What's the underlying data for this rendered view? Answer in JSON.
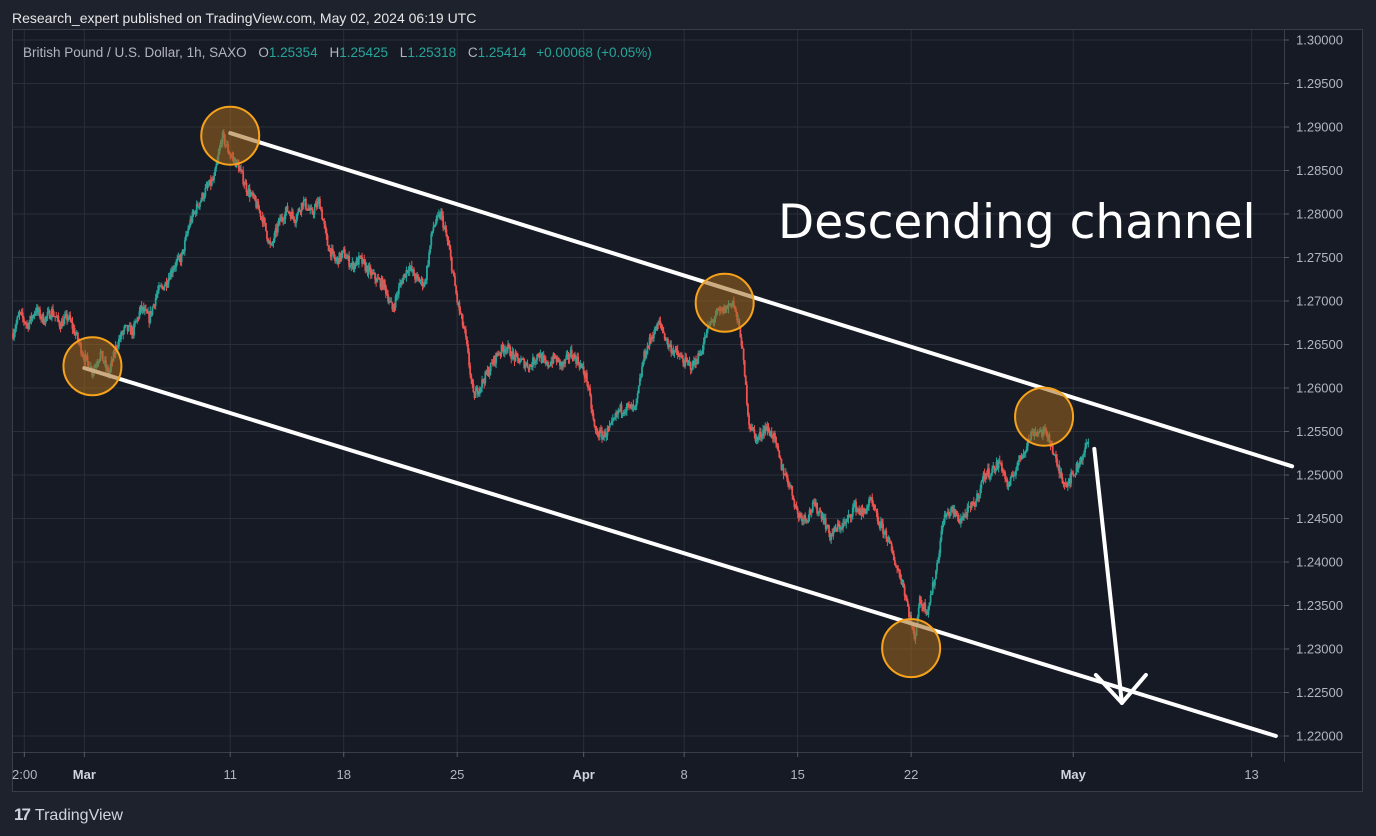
{
  "header": {
    "published_line": "Research_expert published on TradingView.com, May 02, 2024 06:19 UTC"
  },
  "legend": {
    "symbol": "British Pound / U.S. Dollar, 1h, SAXO",
    "open_key": "O",
    "open": "1.25354",
    "high_key": "H",
    "high": "1.25425",
    "low_key": "L",
    "low": "1.25318",
    "close_key": "C",
    "close": "1.25414",
    "change": "+0.00068 (+0.05%)"
  },
  "annotation": {
    "text": "Descending channel"
  },
  "footer": {
    "brand_logo": "17",
    "brand": "TradingView"
  },
  "colors": {
    "up": "#26a69a",
    "down": "#ef5350",
    "channel": "#ffffff",
    "marker_fill": "#a36a1d",
    "marker_stroke": "#f7a21b",
    "grid": "#2a2e39",
    "background": "#161a25"
  },
  "chart_data": {
    "type": "candlestick",
    "title": "British Pound / U.S. Dollar, 1h, SAXO",
    "ylabel": "",
    "xlabel": "",
    "ylim": [
      1.2175,
      1.3
    ],
    "y_ticks": [
      "1.30000",
      "1.29500",
      "1.29000",
      "1.28500",
      "1.28000",
      "1.27500",
      "1.27000",
      "1.26500",
      "1.26000",
      "1.25500",
      "1.25000",
      "1.24500",
      "1.24000",
      "1.23500",
      "1.23000",
      "1.22500",
      "1.22000"
    ],
    "x_ticks": [
      "2:00",
      "Mar",
      "11",
      "18",
      "25",
      "Apr",
      "8",
      "15",
      "22",
      "May",
      "13"
    ],
    "x_ticks_bold": [
      "Mar",
      "Apr",
      "May"
    ],
    "x_tick_days": [
      -3.7,
      0,
      9,
      16,
      23,
      30.8,
      37,
      44,
      51,
      61,
      72
    ],
    "xlim_days": [
      -4.4,
      74
    ],
    "grid": true,
    "price_path": [
      [
        -4.4,
        1.2663
      ],
      [
        -4,
        1.2685
      ],
      [
        -3.5,
        1.2672
      ],
      [
        -3,
        1.269
      ],
      [
        -2.5,
        1.2678
      ],
      [
        -2,
        1.2688
      ],
      [
        -1.5,
        1.2673
      ],
      [
        -1,
        1.2682
      ],
      [
        -0.5,
        1.266
      ],
      [
        0,
        1.2635
      ],
      [
        0.5,
        1.262
      ],
      [
        1,
        1.264
      ],
      [
        1.5,
        1.2615
      ],
      [
        2,
        1.265
      ],
      [
        2.5,
        1.2668
      ],
      [
        3,
        1.2665
      ],
      [
        3.5,
        1.2692
      ],
      [
        4,
        1.268
      ],
      [
        4.5,
        1.271
      ],
      [
        5,
        1.272
      ],
      [
        5.5,
        1.274
      ],
      [
        6,
        1.275
      ],
      [
        6.5,
        1.279
      ],
      [
        7,
        1.281
      ],
      [
        7.5,
        1.2828
      ],
      [
        8,
        1.284
      ],
      [
        8.5,
        1.289
      ],
      [
        9,
        1.2868
      ],
      [
        9.5,
        1.2855
      ],
      [
        10,
        1.283
      ],
      [
        10.5,
        1.2815
      ],
      [
        11,
        1.2795
      ],
      [
        11.5,
        1.276
      ],
      [
        12,
        1.279
      ],
      [
        12.5,
        1.2805
      ],
      [
        13,
        1.2795
      ],
      [
        13.5,
        1.2815
      ],
      [
        14,
        1.28
      ],
      [
        14.5,
        1.2815
      ],
      [
        15,
        1.2765
      ],
      [
        15.5,
        1.2745
      ],
      [
        16,
        1.2755
      ],
      [
        16.5,
        1.274
      ],
      [
        17,
        1.2748
      ],
      [
        17.5,
        1.2735
      ],
      [
        18,
        1.2725
      ],
      [
        18.5,
        1.2718
      ],
      [
        19,
        1.269
      ],
      [
        19.5,
        1.272
      ],
      [
        20,
        1.274
      ],
      [
        20.5,
        1.2725
      ],
      [
        21,
        1.272
      ],
      [
        21.5,
        1.2785
      ],
      [
        22,
        1.28
      ],
      [
        22.5,
        1.276
      ],
      [
        23,
        1.27
      ],
      [
        23.5,
        1.266
      ],
      [
        24,
        1.259
      ],
      [
        24.5,
        1.2605
      ],
      [
        25,
        1.2622
      ],
      [
        25.5,
        1.264
      ],
      [
        26,
        1.2648
      ],
      [
        26.5,
        1.2635
      ],
      [
        27,
        1.263
      ],
      [
        27.5,
        1.2625
      ],
      [
        28,
        1.264
      ],
      [
        28.5,
        1.2625
      ],
      [
        29,
        1.2635
      ],
      [
        29.5,
        1.2625
      ],
      [
        30,
        1.264
      ],
      [
        30.5,
        1.263
      ],
      [
        31,
        1.261
      ],
      [
        31.5,
        1.255
      ],
      [
        32,
        1.2545
      ],
      [
        32.5,
        1.2555
      ],
      [
        33,
        1.2575
      ],
      [
        33.5,
        1.2578
      ],
      [
        34,
        1.2575
      ],
      [
        34.5,
        1.2635
      ],
      [
        35,
        1.266
      ],
      [
        35.5,
        1.2675
      ],
      [
        36,
        1.265
      ],
      [
        36.5,
        1.264
      ],
      [
        37,
        1.263
      ],
      [
        37.5,
        1.2625
      ],
      [
        38,
        1.264
      ],
      [
        38.5,
        1.267
      ],
      [
        39,
        1.2685
      ],
      [
        39.5,
        1.269
      ],
      [
        40,
        1.27
      ],
      [
        40.5,
        1.266
      ],
      [
        41,
        1.256
      ],
      [
        41.5,
        1.254
      ],
      [
        42,
        1.2555
      ],
      [
        42.5,
        1.2545
      ],
      [
        43,
        1.251
      ],
      [
        43.5,
        1.249
      ],
      [
        44,
        1.2455
      ],
      [
        44.5,
        1.245
      ],
      [
        45,
        1.2465
      ],
      [
        45.5,
        1.2455
      ],
      [
        46,
        1.243
      ],
      [
        46.5,
        1.244
      ],
      [
        47,
        1.2445
      ],
      [
        47.5,
        1.2465
      ],
      [
        48,
        1.2455
      ],
      [
        48.5,
        1.247
      ],
      [
        49,
        1.2445
      ],
      [
        49.5,
        1.243
      ],
      [
        50,
        1.24
      ],
      [
        50.5,
        1.2375
      ],
      [
        51,
        1.233
      ],
      [
        51.2,
        1.231
      ],
      [
        51.5,
        1.2355
      ],
      [
        52,
        1.2345
      ],
      [
        52.5,
        1.2385
      ],
      [
        53,
        1.245
      ],
      [
        53.5,
        1.246
      ],
      [
        54,
        1.2448
      ],
      [
        54.5,
        1.2458
      ],
      [
        55,
        1.247
      ],
      [
        55.5,
        1.25
      ],
      [
        56,
        1.2505
      ],
      [
        56.5,
        1.2515
      ],
      [
        57,
        1.2485
      ],
      [
        57.5,
        1.251
      ],
      [
        58,
        1.253
      ],
      [
        58.5,
        1.255
      ],
      [
        59,
        1.255
      ],
      [
        59.5,
        1.2545
      ],
      [
        60,
        1.251
      ],
      [
        60.5,
        1.249
      ],
      [
        61,
        1.25
      ],
      [
        61.5,
        1.252
      ],
      [
        62,
        1.2541
      ]
    ],
    "channel_upper": [
      [
        9,
        1.2893
      ],
      [
        74.5,
        1.251
      ]
    ],
    "channel_lower": [
      [
        0,
        1.2623
      ],
      [
        73.5,
        1.22
      ]
    ],
    "touch_points": [
      [
        9,
        1.289
      ],
      [
        0.5,
        1.2625
      ],
      [
        39.5,
        1.2698
      ],
      [
        51,
        1.2301
      ],
      [
        59.2,
        1.2567
      ]
    ],
    "projection_arrow": [
      [
        62.3,
        1.253
      ],
      [
        64,
        1.2238
      ]
    ]
  }
}
